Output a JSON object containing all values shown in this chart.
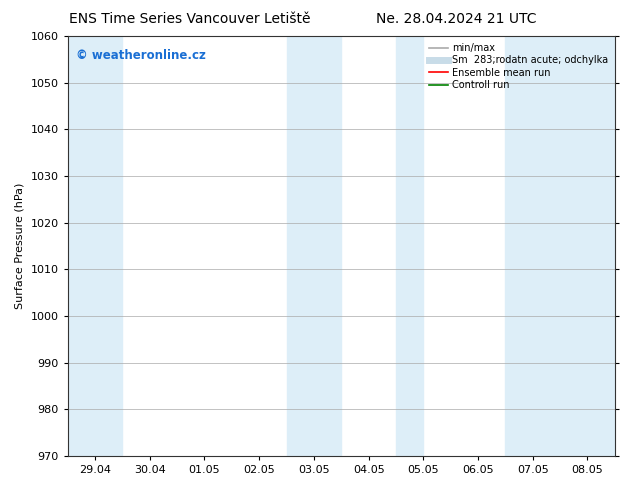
{
  "title_left": "ENS Time Series Vancouver Letiště",
  "title_right": "Ne. 28.04.2024 21 UTC",
  "ylabel": "Surface Pressure (hPa)",
  "ylim": [
    970,
    1060
  ],
  "yticks": [
    970,
    980,
    990,
    1000,
    1010,
    1020,
    1030,
    1040,
    1050,
    1060
  ],
  "xtick_labels": [
    "29.04",
    "30.04",
    "01.05",
    "02.05",
    "03.05",
    "04.05",
    "05.05",
    "06.05",
    "07.05",
    "08.05"
  ],
  "xtick_positions": [
    0,
    1,
    2,
    3,
    4,
    5,
    6,
    7,
    8,
    9
  ],
  "xlim": [
    -0.5,
    9.5
  ],
  "shaded_bands": [
    {
      "x_start": -0.5,
      "x_end": 0.5,
      "color": "#ddeef8"
    },
    {
      "x_start": 3.5,
      "x_end": 4.5,
      "color": "#ddeef8"
    },
    {
      "x_start": 5.5,
      "x_end": 6.0,
      "color": "#ddeef8"
    },
    {
      "x_start": 7.5,
      "x_end": 9.5,
      "color": "#ddeef8"
    }
  ],
  "watermark_text": "© weatheronline.cz",
  "watermark_color": "#1a6fd4",
  "legend_entries": [
    {
      "label": "min/max",
      "color": "#aaaaaa",
      "linestyle": "-",
      "linewidth": 1.2
    },
    {
      "label": "Sm  283;rodatn acute; odchylka",
      "color": "#c8dce8",
      "linestyle": "-",
      "linewidth": 5
    },
    {
      "label": "Ensemble mean run",
      "color": "red",
      "linestyle": "-",
      "linewidth": 1.2
    },
    {
      "label": "Controll run",
      "color": "green",
      "linestyle": "-",
      "linewidth": 1.2
    }
  ],
  "background_color": "#ffffff",
  "plot_bg_color": "#ffffff",
  "grid_color": "#aaaaaa",
  "title_fontsize": 10,
  "axis_label_fontsize": 8,
  "tick_fontsize": 8
}
